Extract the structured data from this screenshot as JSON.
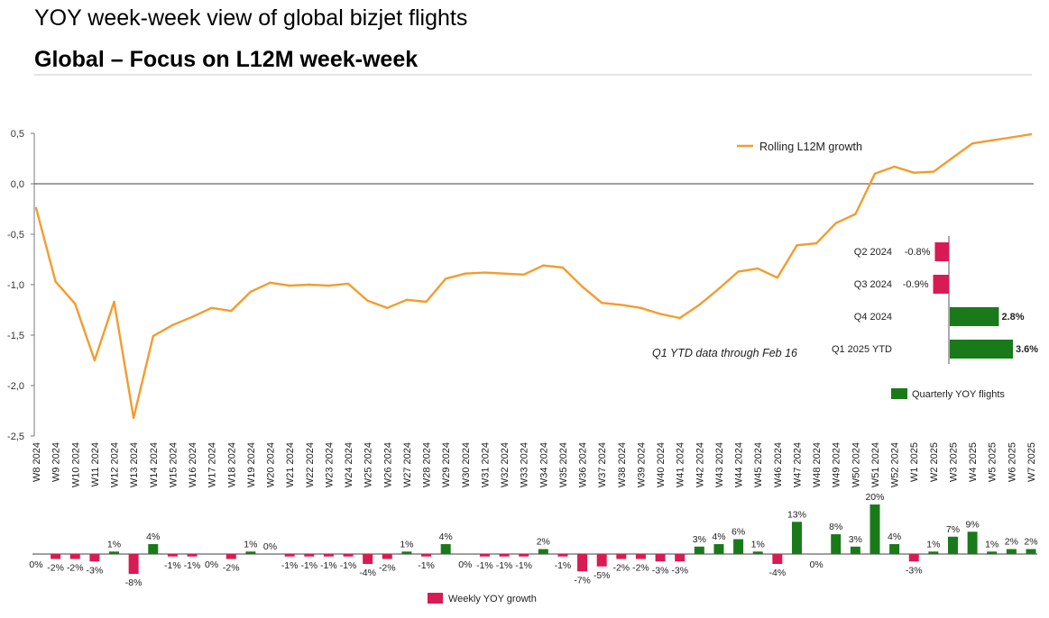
{
  "page": {
    "title": "YOY week-week view of global bizjet flights",
    "subtitle": "Global – Focus on L12M week-week"
  },
  "colors": {
    "line": "#f39c2e",
    "positive_bar": "#1a7a1a",
    "negative_bar": "#d81b54",
    "axis": "#404040"
  },
  "chart_data": [
    {
      "type": "line",
      "series": [
        {
          "name": "Rolling L12M growth"
        }
      ],
      "y_ticks": [
        "0,5",
        "0,0",
        "-0,5",
        "-1,0",
        "-1,5",
        "-2,0",
        "-2,5"
      ],
      "ylim": [
        -2.5,
        0.5
      ],
      "categories": [
        "W8 2024",
        "W9 2024",
        "W10 2024",
        "W11 2024",
        "W12 2024",
        "W13 2024",
        "W14 2024",
        "W15 2024",
        "W16 2024",
        "W17 2024",
        "W18 2024",
        "W19 2024",
        "W20 2024",
        "W21 2024",
        "W22 2024",
        "W23 2024",
        "W24 2024",
        "W25 2024",
        "W26 2024",
        "W27 2024",
        "W28 2024",
        "W29 2024",
        "W30 2024",
        "W31 2024",
        "W32 2024",
        "W33 2024",
        "W34 2024",
        "W35 2024",
        "W36 2024",
        "W37 2024",
        "W38 2024",
        "W39 2024",
        "W40 2024",
        "W41 2024",
        "W42 2024",
        "W43 2024",
        "W44 2024",
        "W45 2024",
        "W46 2024",
        "W47 2024",
        "W48 2024",
        "W49 2024",
        "W50 2024",
        "W51 2024",
        "W52 2024",
        "W1 2025",
        "W2 2025",
        "W3 2025",
        "W4 2025",
        "W5 2025",
        "W6 2025",
        "W7 2025"
      ],
      "values": [
        -0.24,
        -0.97,
        -1.19,
        -1.75,
        -1.17,
        -2.32,
        -1.51,
        -1.4,
        -1.32,
        -1.23,
        -1.26,
        -1.07,
        -0.98,
        -1.01,
        -1.0,
        -1.01,
        -0.99,
        -1.16,
        -1.23,
        -1.15,
        -1.17,
        -0.94,
        -0.89,
        -0.88,
        -0.89,
        -0.9,
        -0.81,
        -0.83,
        -1.02,
        -1.18,
        -1.2,
        -1.23,
        -1.29,
        -1.33,
        -1.2,
        -1.04,
        -0.87,
        -0.84,
        -0.93,
        -0.61,
        -0.59,
        -0.39,
        -0.3,
        0.1,
        0.17,
        0.11,
        0.12,
        0.26,
        0.4,
        0.43,
        0.46,
        0.49
      ],
      "annotation": "Q1 YTD data through Feb 16"
    },
    {
      "type": "bar",
      "orientation": "horizontal",
      "series": [
        {
          "name": "Quarterly YOY flights"
        }
      ],
      "categories": [
        "Q2 2024",
        "Q3 2024",
        "Q4 2024",
        "Q1 2025 YTD"
      ],
      "values": [
        -0.8,
        -0.9,
        2.8,
        3.6
      ],
      "labels": [
        "-0.8%",
        "-0.9%",
        "2.8%",
        "3.6%"
      ]
    },
    {
      "type": "bar",
      "series": [
        {
          "name": "Weekly YOY growth"
        }
      ],
      "values": [
        0,
        -2,
        -2,
        -3,
        1,
        -8,
        4,
        -1,
        -1,
        0,
        -2,
        1,
        0,
        -1,
        -1,
        -1,
        -1,
        -4,
        -2,
        1,
        -1,
        4,
        0,
        -1,
        -1,
        -1,
        2,
        -1,
        -7,
        -5,
        -2,
        -2,
        -3,
        -3,
        3,
        4,
        6,
        1,
        -4,
        13,
        0,
        8,
        3,
        20,
        4,
        -3,
        1,
        7,
        9,
        1,
        2,
        2
      ],
      "labels": [
        "0%",
        "-2%",
        "-2%",
        "-3%",
        "1%",
        "-8%",
        "4%",
        "-1%",
        "-1%",
        "0%",
        "-2%",
        "1%",
        "0%",
        "-1%",
        "-1%",
        "-1%",
        "-1%",
        "-4%",
        "-2%",
        "1%",
        "-1%",
        "4%",
        "0%",
        "-1%",
        "-1%",
        "-1%",
        "2%",
        "-1%",
        "-7%",
        "-5%",
        "-2%",
        "-2%",
        "-3%",
        "-3%",
        "3%",
        "4%",
        "6%",
        "1%",
        "-4%",
        "13%",
        "0%",
        "8%",
        "3%",
        "20%",
        "4%",
        "-3%",
        "1%",
        "7%",
        "9%",
        "1%",
        "2%",
        "2%"
      ]
    }
  ]
}
